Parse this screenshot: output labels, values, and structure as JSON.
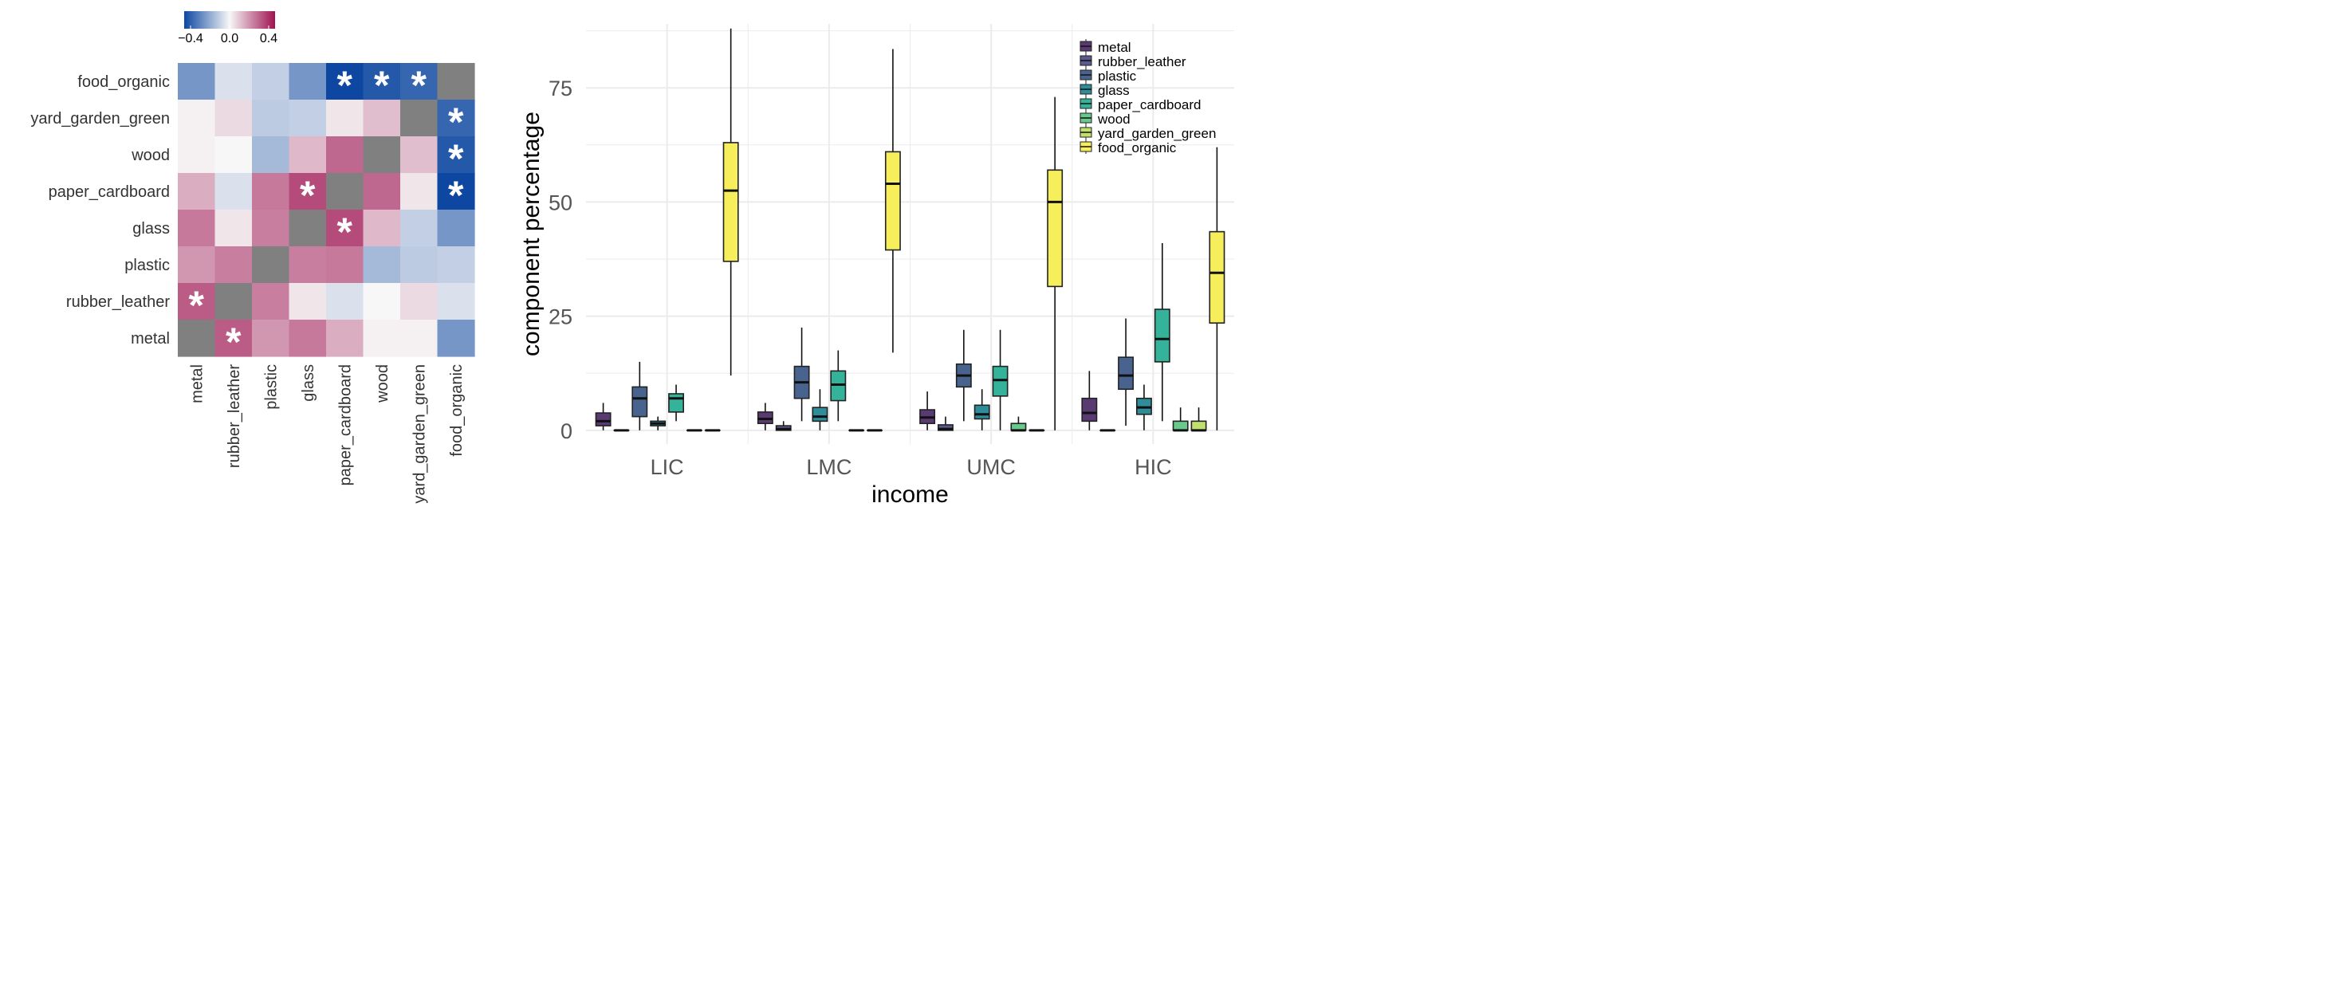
{
  "colors": {
    "blue": "#0d47a1",
    "white": "#f7f7f7",
    "red": "#9e1250",
    "na": "#808080",
    "grid": "#ebebeb",
    "text": "#333333",
    "palette": [
      "#5a3a73",
      "#5b5b8f",
      "#48648e",
      "#2f8d99",
      "#35b29a",
      "#69c88c",
      "#c2e06e",
      "#f6ee5b"
    ]
  },
  "chart_data": [
    {
      "type": "heatmap",
      "title": "",
      "legend": {
        "min": -0.4,
        "max": 0.4,
        "ticks": [
          "−0.4",
          "0.0",
          "0.4"
        ],
        "placement": "top"
      },
      "rows": [
        "food_organic",
        "yard_garden_green",
        "wood",
        "paper_cardboard",
        "glass",
        "plastic",
        "rubber_leather",
        "metal"
      ],
      "cols": [
        "metal",
        "rubber_leather",
        "plastic",
        "glass",
        "paper_cardboard",
        "wood",
        "yard_garden_green",
        "food_organic"
      ],
      "values": [
        [
          -0.22,
          -0.05,
          -0.09,
          -0.22,
          -0.42,
          -0.36,
          -0.33,
          null
        ],
        [
          0.01,
          0.05,
          -0.1,
          -0.09,
          0.03,
          0.1,
          null,
          -0.33
        ],
        [
          0.01,
          0.0,
          -0.14,
          0.11,
          0.25,
          null,
          0.1,
          -0.36
        ],
        [
          0.13,
          -0.05,
          0.22,
          0.3,
          null,
          0.25,
          0.03,
          -0.42
        ],
        [
          0.22,
          0.03,
          0.21,
          null,
          0.3,
          0.11,
          -0.09,
          -0.22
        ],
        [
          0.17,
          0.21,
          null,
          0.21,
          0.22,
          -0.14,
          -0.1,
          -0.09
        ],
        [
          0.27,
          null,
          0.21,
          0.03,
          -0.05,
          0.0,
          0.05,
          -0.05
        ],
        [
          null,
          0.27,
          0.17,
          0.22,
          0.13,
          0.01,
          0.01,
          -0.22
        ]
      ],
      "significant": [
        [
          false,
          false,
          false,
          false,
          true,
          true,
          true,
          false
        ],
        [
          false,
          false,
          false,
          false,
          false,
          false,
          false,
          true
        ],
        [
          false,
          false,
          false,
          false,
          false,
          false,
          false,
          true
        ],
        [
          false,
          false,
          false,
          true,
          false,
          false,
          false,
          true
        ],
        [
          false,
          false,
          false,
          false,
          true,
          false,
          false,
          false
        ],
        [
          false,
          false,
          false,
          false,
          false,
          false,
          false,
          false
        ],
        [
          true,
          false,
          false,
          false,
          false,
          false,
          false,
          false
        ],
        [
          false,
          true,
          false,
          false,
          false,
          false,
          false,
          false
        ]
      ],
      "star_symbol": "*"
    },
    {
      "type": "box",
      "xlabel": "income",
      "ylabel": "component percentage",
      "ylim": [
        -3,
        89
      ],
      "yticks": [
        0,
        25,
        50,
        75
      ],
      "categories": [
        "LIC",
        "LMC",
        "UMC",
        "HIC"
      ],
      "grid": true,
      "legend_placement": "top-right",
      "series": [
        {
          "name": "metal",
          "boxes": [
            {
              "whislo": 0,
              "q1": 1,
              "med": 2,
              "q3": 3.8,
              "whishi": 6
            },
            {
              "whislo": 0,
              "q1": 1.5,
              "med": 2.5,
              "q3": 4,
              "whishi": 6
            },
            {
              "whislo": 0,
              "q1": 1.5,
              "med": 2.8,
              "q3": 4.5,
              "whishi": 8.5
            },
            {
              "whislo": 0,
              "q1": 2,
              "med": 3.8,
              "q3": 7,
              "whishi": 13
            }
          ]
        },
        {
          "name": "rubber_leather",
          "boxes": [
            {
              "whislo": 0,
              "q1": 0,
              "med": 0,
              "q3": 0,
              "whishi": 0
            },
            {
              "whislo": 0,
              "q1": 0,
              "med": 0.3,
              "q3": 1,
              "whishi": 2
            },
            {
              "whislo": 0,
              "q1": 0,
              "med": 0.3,
              "q3": 1.2,
              "whishi": 3
            },
            {
              "whislo": 0,
              "q1": 0,
              "med": 0,
              "q3": 0,
              "whishi": 0
            }
          ]
        },
        {
          "name": "plastic",
          "boxes": [
            {
              "whislo": 0,
              "q1": 3,
              "med": 7,
              "q3": 9.5,
              "whishi": 15
            },
            {
              "whislo": 2,
              "q1": 7,
              "med": 10.5,
              "q3": 14,
              "whishi": 22.5
            },
            {
              "whislo": 2,
              "q1": 9.5,
              "med": 12,
              "q3": 14.5,
              "whishi": 22
            },
            {
              "whislo": 1,
              "q1": 9,
              "med": 12,
              "q3": 16,
              "whishi": 24.5
            }
          ]
        },
        {
          "name": "glass",
          "boxes": [
            {
              "whislo": 0,
              "q1": 1,
              "med": 1.5,
              "q3": 2,
              "whishi": 3
            },
            {
              "whislo": 0,
              "q1": 2,
              "med": 3,
              "q3": 5,
              "whishi": 9
            },
            {
              "whislo": 0,
              "q1": 2.5,
              "med": 3.5,
              "q3": 5.5,
              "whishi": 9
            },
            {
              "whislo": 0,
              "q1": 3.5,
              "med": 5,
              "q3": 7,
              "whishi": 10
            }
          ]
        },
        {
          "name": "paper_cardboard",
          "boxes": [
            {
              "whislo": 2,
              "q1": 4,
              "med": 7,
              "q3": 8,
              "whishi": 10
            },
            {
              "whislo": 2,
              "q1": 6.5,
              "med": 10,
              "q3": 13,
              "whishi": 17.5
            },
            {
              "whislo": 0,
              "q1": 7.5,
              "med": 11,
              "q3": 14,
              "whishi": 22
            },
            {
              "whislo": 2,
              "q1": 15,
              "med": 20,
              "q3": 26.5,
              "whishi": 41
            }
          ]
        },
        {
          "name": "wood",
          "boxes": [
            {
              "whislo": 0,
              "q1": 0,
              "med": 0,
              "q3": 0,
              "whishi": 0
            },
            {
              "whislo": 0,
              "q1": 0,
              "med": 0,
              "q3": 0,
              "whishi": 0
            },
            {
              "whislo": 0,
              "q1": 0,
              "med": 0,
              "q3": 1.5,
              "whishi": 3
            },
            {
              "whislo": 0,
              "q1": 0,
              "med": 0,
              "q3": 2,
              "whishi": 5
            }
          ]
        },
        {
          "name": "yard_garden_green",
          "boxes": [
            {
              "whislo": 0,
              "q1": 0,
              "med": 0,
              "q3": 0,
              "whishi": 0
            },
            {
              "whislo": 0,
              "q1": 0,
              "med": 0,
              "q3": 0,
              "whishi": 0
            },
            {
              "whislo": 0,
              "q1": 0,
              "med": 0,
              "q3": 0,
              "whishi": 0
            },
            {
              "whislo": 0,
              "q1": 0,
              "med": 0,
              "q3": 2,
              "whishi": 5
            }
          ]
        },
        {
          "name": "food_organic",
          "boxes": [
            {
              "whislo": 12,
              "q1": 37,
              "med": 52.5,
              "q3": 63,
              "whishi": 88
            },
            {
              "whislo": 17,
              "q1": 39.5,
              "med": 54,
              "q3": 61,
              "whishi": 83.5
            },
            {
              "whislo": 0,
              "q1": 31.5,
              "med": 50,
              "q3": 57,
              "whishi": 73
            },
            {
              "whislo": 0,
              "q1": 23.5,
              "med": 34.5,
              "q3": 43.5,
              "whishi": 62
            }
          ]
        }
      ]
    }
  ]
}
